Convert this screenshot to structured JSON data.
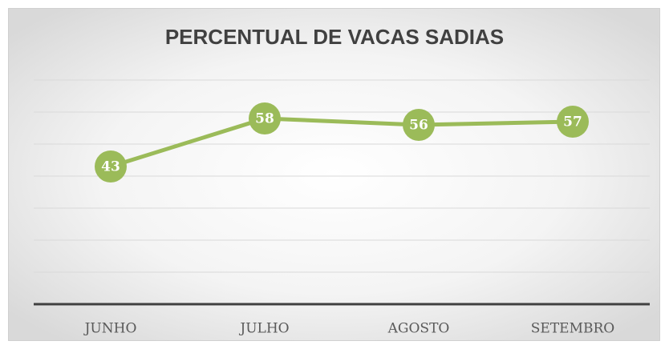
{
  "chart_data": {
    "type": "line",
    "title": "PERCENTUAL DE VACAS SADIAS",
    "categories": [
      "JUNHO",
      "JULHO",
      "AGOSTO",
      "SETEMBRO"
    ],
    "values": [
      43,
      58,
      56,
      57
    ],
    "color": "#9bbb59",
    "ylim": [
      0,
      70
    ],
    "yticks": [
      10,
      20,
      30,
      40,
      50,
      60,
      70
    ],
    "grid": true
  }
}
